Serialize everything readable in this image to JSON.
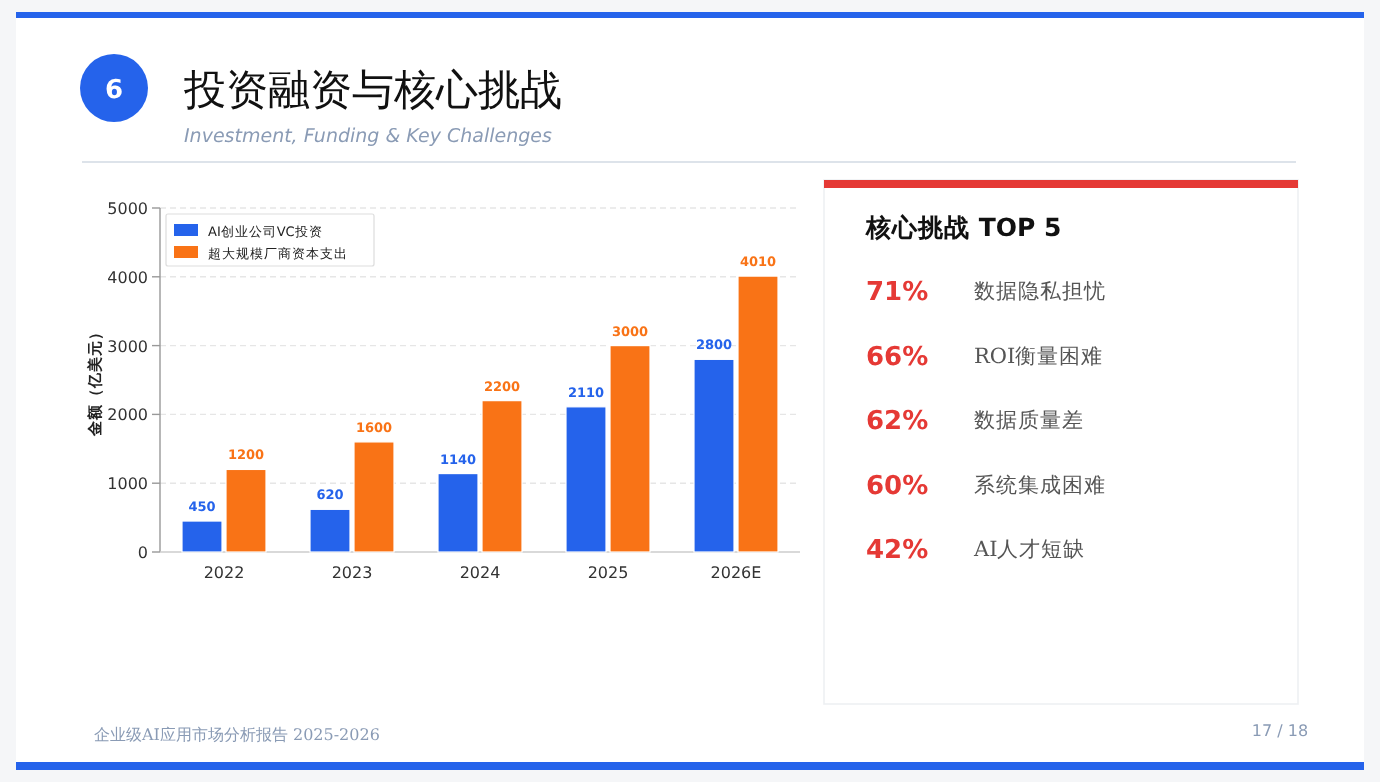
{
  "chart_data": [
    {
      "type": "bar",
      "title": "投资融资与核心挑战",
      "subtitle": "Investment, Funding & Key Challenges",
      "annotations": [
        "6",
        "企业级AI应用市场分析报告 2025-2026",
        "17 / 18"
      ],
      "ylabel": "金额（亿美元）",
      "categories": [
        "2022",
        "2023",
        "2024",
        "2025",
        "2026E"
      ],
      "series": [
        {
          "name": "AI创业公司VC投资",
          "color": "#2563eb",
          "values": [
            450,
            620,
            1140,
            2110,
            2800
          ]
        },
        {
          "name": "超大规模厂商资本支出",
          "color": "#f97316",
          "values": [
            1200,
            1600,
            2200,
            3000,
            4010
          ]
        }
      ],
      "ylim": [
        0,
        5000
      ],
      "yticks": [
        0,
        1000,
        2000,
        3000,
        4000,
        5000
      ],
      "grid": "y",
      "legend": "top left",
      "data_labels": true
    },
    {
      "type": "other",
      "title": "核心挑战 TOP 5",
      "categories": [
        "数据隐私担忧",
        "ROI衡量困难",
        "数据质量差",
        "系统集成困难",
        "AI人才短缺"
      ],
      "value_labels": [
        "71%",
        "66%",
        "62%",
        "60%",
        "42%"
      ],
      "color": "#e53935"
    }
  ]
}
